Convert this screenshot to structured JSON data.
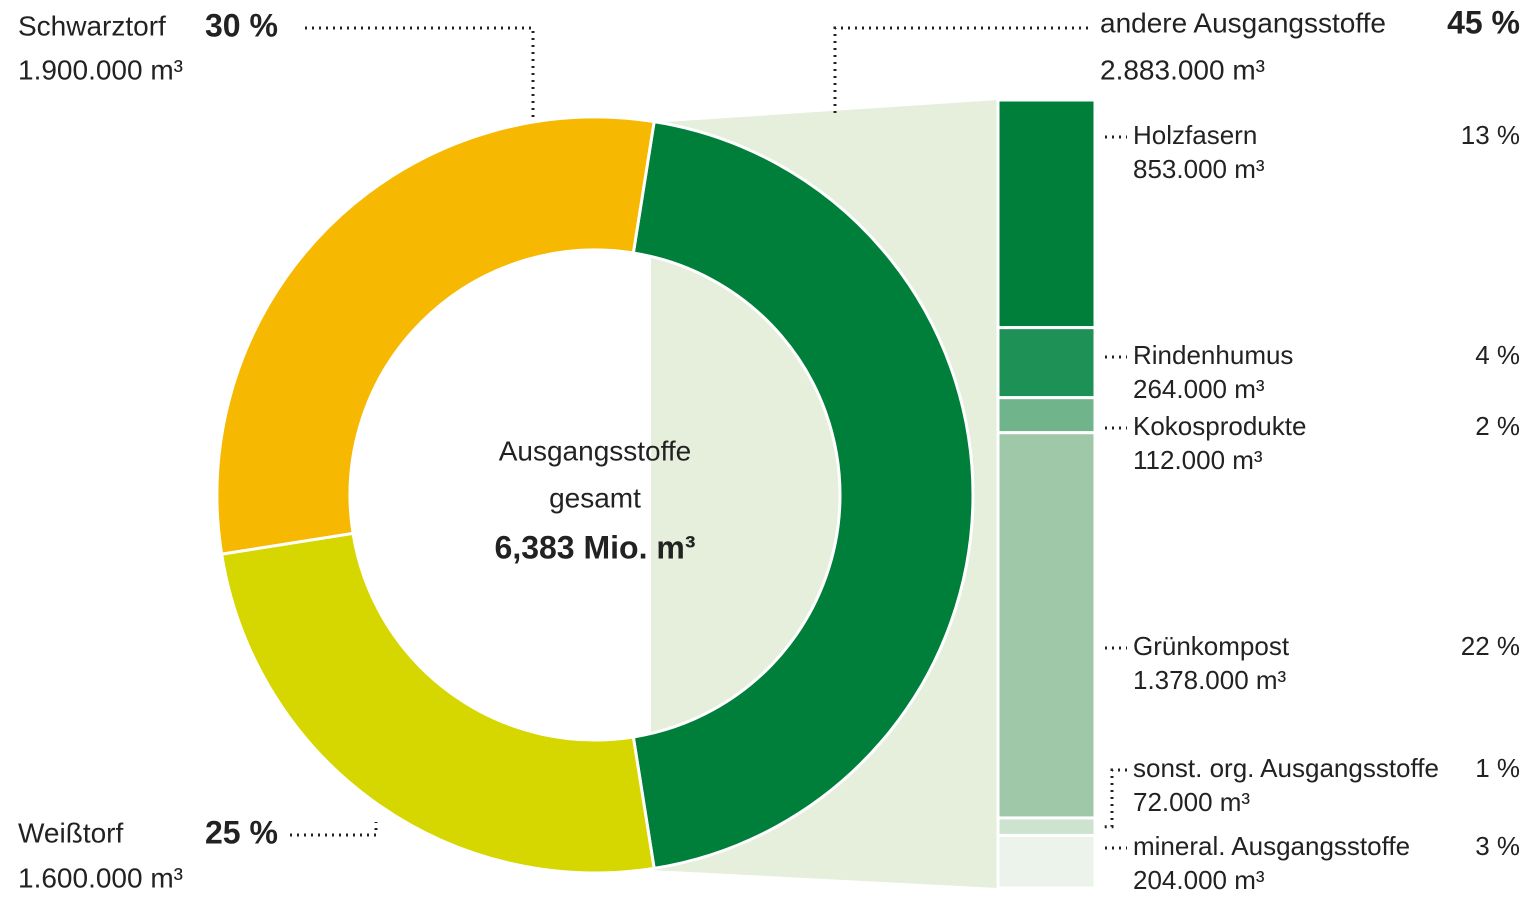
{
  "chart_data": {
    "type": "pie",
    "donut": true,
    "categories": [
      "andere Ausgangsstoffe",
      "Weißtorf",
      "Schwarztorf"
    ],
    "values": [
      45,
      25,
      30
    ],
    "value_labels": [
      "45 %",
      "25 %",
      "30 %"
    ],
    "volume_labels": [
      "2.883.000 m³",
      "1.600.000 m³",
      "1.900.000 m³"
    ],
    "colors": [
      "#007f3b",
      "#d6d600",
      "#f6b800"
    ],
    "center_lines": [
      "Ausgangsstoffe",
      "gesamt"
    ],
    "total_label": "6,383 Mio. m³",
    "breakdown": {
      "type": "bar",
      "categories": [
        "Holzfasern",
        "Rindenhumus",
        "Kokosprodukte",
        "Grünkompost",
        "sonst. org. Ausgangsstoffe",
        "mineral. Ausgangsstoffe"
      ],
      "values": [
        13,
        4,
        2,
        22,
        1,
        3
      ],
      "value_labels": [
        "13 %",
        "4 %",
        "2 %",
        "22 %",
        "1 %",
        "3 %"
      ],
      "volume_labels": [
        "853.000 m³",
        "264.000 m³",
        "112.000 m³",
        "1.378.000 m³",
        "72.000 m³",
        "204.000 m³"
      ],
      "colors": [
        "#007f3b",
        "#1e9156",
        "#6fb48b",
        "#9ec8a8",
        "#cde3cf",
        "#ebf3ea"
      ]
    }
  }
}
